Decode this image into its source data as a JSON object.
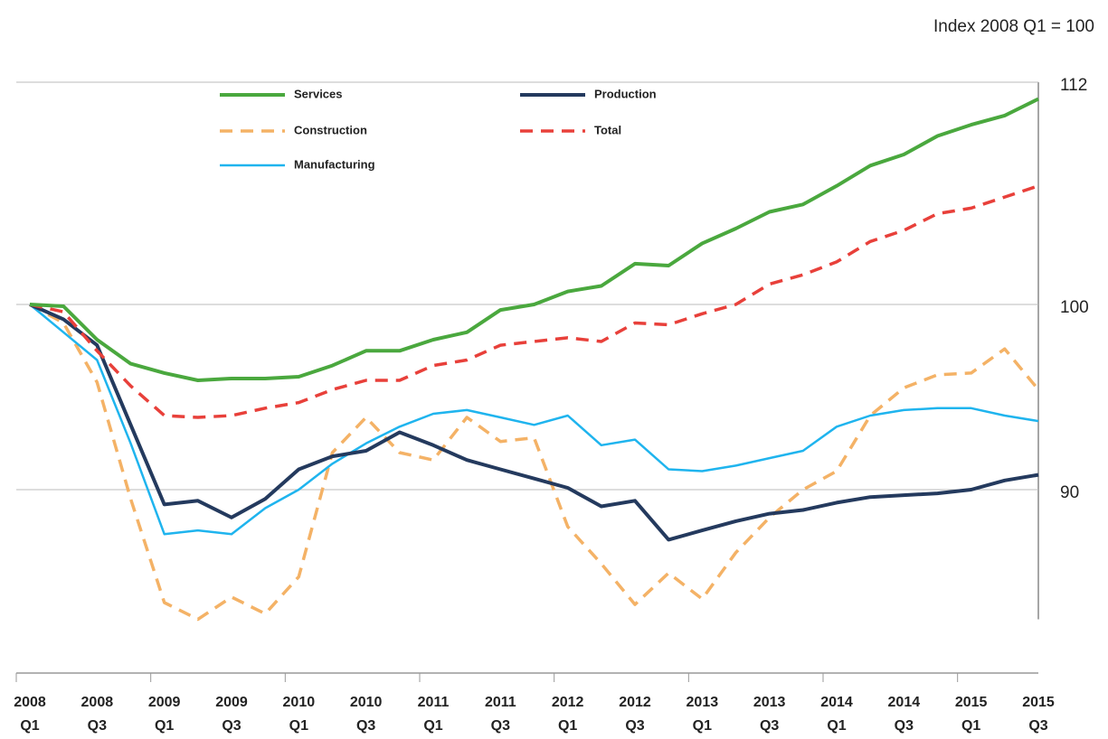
{
  "chart_data": {
    "type": "line",
    "unit_label": "Index 2008 Q1 = 100",
    "categories": [
      "2008 Q1",
      null,
      "2008 Q3",
      null,
      "2009 Q1",
      null,
      "2009 Q3",
      null,
      "2010 Q1",
      null,
      "2010 Q3",
      null,
      "2011 Q1",
      null,
      "2011 Q3",
      null,
      "2012 Q1",
      null,
      "2012 Q3",
      null,
      "2013 Q1",
      null,
      "2013 Q3",
      null,
      "2014 Q1",
      null,
      "2014 Q3",
      null,
      "2015 Q1",
      null,
      "2015 Q3"
    ],
    "series": [
      {
        "name": "Construction",
        "color": "#f4b266",
        "dashed": true,
        "values": [
          100,
          99.0,
          95.8,
          89.5,
          83.9,
          83.0,
          84.2,
          83.3,
          85.3,
          92.0,
          93.9,
          92.0,
          91.6,
          93.9,
          92.6,
          92.8,
          88.0,
          86.0,
          83.8,
          85.5,
          84.1,
          86.6,
          88.5,
          90.0,
          91.0,
          94.0,
          95.5,
          96.2,
          96.3,
          97.6,
          95.4
        ]
      },
      {
        "name": "Manufacturing",
        "color": "#1fb4ee",
        "dashed": false,
        "values": [
          100,
          98.5,
          97.0,
          92.5,
          87.6,
          87.8,
          87.6,
          89.0,
          90.0,
          91.4,
          92.5,
          93.4,
          94.1,
          94.3,
          93.9,
          93.5,
          94.0,
          92.4,
          92.7,
          91.1,
          91.0,
          91.3,
          91.7,
          92.1,
          93.4,
          94.0,
          94.3,
          94.4,
          94.4,
          94.0,
          93.7
        ]
      },
      {
        "name": "Production",
        "color": "#243a5e",
        "dashed": false,
        "values": [
          100,
          99.2,
          97.8,
          93.5,
          89.2,
          89.4,
          88.5,
          89.5,
          91.1,
          91.8,
          92.1,
          93.1,
          92.4,
          91.6,
          91.1,
          90.6,
          90.1,
          89.1,
          89.4,
          87.3,
          87.8,
          88.3,
          88.7,
          88.9,
          89.3,
          89.6,
          89.7,
          89.8,
          90.0,
          90.5,
          90.8
        ]
      },
      {
        "name": "Total",
        "color": "#e8403a",
        "dashed": true,
        "values": [
          100,
          99.6,
          97.5,
          95.6,
          94.0,
          93.9,
          94.0,
          94.4,
          94.7,
          95.4,
          95.9,
          95.9,
          96.7,
          97.0,
          97.8,
          98.0,
          98.2,
          98.0,
          99.0,
          98.9,
          99.5,
          100.0,
          101.1,
          101.6,
          102.3,
          103.4,
          104.0,
          104.9,
          105.2,
          105.8,
          106.4
        ]
      },
      {
        "name": "Services",
        "color": "#4aa83e",
        "dashed": false,
        "values": [
          100,
          99.9,
          98.1,
          96.8,
          96.3,
          95.9,
          96.0,
          96.0,
          96.1,
          96.7,
          97.5,
          97.5,
          98.1,
          98.5,
          99.7,
          100.0,
          100.7,
          101.0,
          102.2,
          102.1,
          103.3,
          104.1,
          105.0,
          105.4,
          106.4,
          107.5,
          108.1,
          109.1,
          109.7,
          110.2,
          111.1
        ]
      }
    ],
    "ylim": [
      83,
      112
    ],
    "yticks": [
      90,
      100,
      112
    ],
    "grid": true,
    "legend": "upper left"
  }
}
